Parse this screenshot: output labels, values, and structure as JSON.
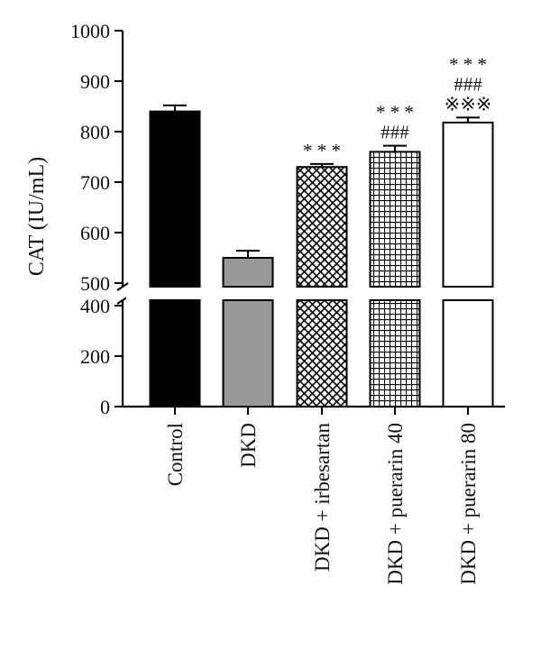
{
  "chart_data": {
    "type": "bar",
    "ylabel": "CAT (IU/mL)",
    "xlabel": "",
    "title": "",
    "axis_break": {
      "from": 400,
      "to": 500
    },
    "ylim_lower": [
      0,
      400
    ],
    "ylim_upper": [
      500,
      1000
    ],
    "yticks": [
      0,
      200,
      400,
      500,
      600,
      700,
      800,
      900,
      1000
    ],
    "categories": [
      "Control",
      "DKD",
      "DKD + irbesartan",
      "DKD + puerarin 40",
      "DKD + puerarin 80"
    ],
    "values": [
      840,
      550,
      730,
      760,
      818
    ],
    "errors": [
      12,
      14,
      6,
      12,
      10
    ],
    "bar_styles": [
      "solid-black",
      "solid-gray",
      "crosshatch",
      "grid",
      "white"
    ],
    "colors": {
      "black": "#000000",
      "gray": "#999999",
      "white": "#ffffff"
    },
    "annotations": [
      [],
      [],
      [
        "* * *"
      ],
      [
        "###",
        "* * *"
      ],
      [
        "※※※",
        "###",
        "* * *"
      ]
    ]
  }
}
